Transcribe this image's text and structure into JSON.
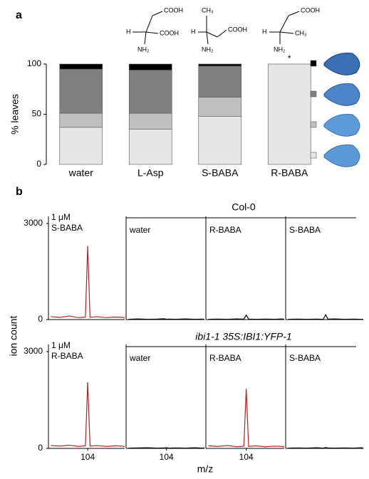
{
  "panel_labels": [
    "a",
    "b"
  ],
  "structures": [
    {
      "top": "COOH",
      "left": "H",
      "right": "COOH",
      "bottom": "NH₂"
    },
    {
      "top": "CH₃",
      "left": "H",
      "right": "COOH",
      "bottom": "NH₂"
    },
    {
      "top": "COOH",
      "left": "H",
      "right": "CH₃",
      "bottom": "NH₂"
    }
  ],
  "panel_b": {
    "ylabel": "ion count",
    "xlabel": "m/z",
    "groups": [
      "Col-0",
      "ibi1-1 35S:IBI1:YFP-1"
    ]
  },
  "chart_data": [
    {
      "type": "bar",
      "stacked": true,
      "ylabel": "% leaves",
      "annotation": "*",
      "categories": [
        "water",
        "L-Asp",
        "S-BABA",
        "R-BABA"
      ],
      "series": [
        {
          "color": "#e6e6e6",
          "values": [
            37,
            35,
            48,
            100
          ]
        },
        {
          "color": "#c0c0c0",
          "values": [
            14,
            16,
            19,
            0
          ]
        },
        {
          "color": "#808080",
          "values": [
            44,
            43,
            31,
            0
          ]
        },
        {
          "color": "#000000",
          "values": [
            5,
            6,
            2,
            0
          ]
        }
      ],
      "ylim": [
        0,
        100
      ],
      "yticks": [
        0,
        50,
        100
      ]
    },
    {
      "type": "line",
      "labels": [
        "1 μM",
        "S-BABA"
      ],
      "x": [
        102.4,
        102.8,
        103.2,
        103.6,
        103.9,
        104.0,
        104.1,
        104.4,
        104.8,
        105.2,
        105.5,
        105.6
      ],
      "series": [
        {
          "color": "#b22222",
          "values": [
            90,
            70,
            110,
            60,
            80,
            2300,
            70,
            90,
            60,
            80,
            70,
            50
          ]
        }
      ],
      "xlim": [
        102.3,
        105.6
      ],
      "ylim": [
        0,
        3000
      ],
      "yticks": [
        0,
        3000
      ]
    },
    {
      "type": "line",
      "labels": [
        "water"
      ],
      "x": [
        102.4,
        102.8,
        103.2,
        103.6,
        103.9,
        104.0,
        104.1,
        104.4,
        104.8,
        105.2,
        105.5,
        105.6
      ],
      "series": [
        {
          "color": "#000000",
          "values": [
            10,
            20,
            10,
            15,
            25,
            10,
            15,
            10,
            20,
            10,
            15,
            10
          ]
        }
      ],
      "xlim": [
        102.3,
        105.6
      ],
      "ylim": [
        0,
        3000
      ]
    },
    {
      "type": "line",
      "labels": [
        "R-BABA"
      ],
      "x": [
        102.4,
        102.8,
        103.2,
        103.6,
        103.9,
        104.0,
        104.1,
        104.4,
        104.8,
        105.2,
        105.5,
        105.6
      ],
      "series": [
        {
          "color": "#000000",
          "values": [
            10,
            15,
            10,
            20,
            15,
            140,
            15,
            10,
            15,
            10,
            20,
            10
          ]
        }
      ],
      "xlim": [
        102.3,
        105.6
      ],
      "ylim": [
        0,
        3000
      ]
    },
    {
      "type": "line",
      "labels": [
        "S-BABA"
      ],
      "x": [
        102.4,
        102.8,
        103.2,
        103.6,
        103.9,
        104.0,
        104.1,
        104.4,
        104.8,
        105.2,
        105.5,
        105.6
      ],
      "series": [
        {
          "color": "#000000",
          "values": [
            10,
            15,
            10,
            15,
            10,
            150,
            15,
            20,
            10,
            15,
            10,
            10
          ]
        }
      ],
      "xlim": [
        102.3,
        105.6
      ],
      "ylim": [
        0,
        3000
      ]
    },
    {
      "type": "line",
      "labels": [
        "1 μM",
        "R-BABA"
      ],
      "x": [
        102.4,
        102.8,
        103.2,
        103.6,
        103.9,
        104.0,
        104.1,
        104.4,
        104.8,
        105.2,
        105.5,
        105.6
      ],
      "series": [
        {
          "color": "#b22222",
          "values": [
            90,
            70,
            100,
            60,
            80,
            2050,
            70,
            90,
            60,
            80,
            70,
            50
          ]
        }
      ],
      "xlim": [
        102.3,
        105.6
      ],
      "ylim": [
        0,
        3000
      ],
      "yticks": [
        0,
        3000
      ],
      "xticks": [
        104
      ]
    },
    {
      "type": "line",
      "labels": [
        "water"
      ],
      "x": [
        102.4,
        102.8,
        103.2,
        103.6,
        103.9,
        104.0,
        104.1,
        104.4,
        104.8,
        105.2,
        105.5,
        105.6
      ],
      "series": [
        {
          "color": "#000000",
          "values": [
            10,
            15,
            20,
            10,
            15,
            20,
            10,
            15,
            10,
            20,
            10,
            15
          ]
        }
      ],
      "xlim": [
        102.3,
        105.6
      ],
      "ylim": [
        0,
        3000
      ],
      "xticks": [
        104
      ]
    },
    {
      "type": "line",
      "labels": [
        "R-BABA"
      ],
      "x": [
        102.4,
        102.8,
        103.2,
        103.6,
        103.9,
        104.0,
        104.1,
        104.4,
        104.8,
        105.2,
        105.5,
        105.6
      ],
      "series": [
        {
          "color": "#b22222",
          "values": [
            80,
            60,
            90,
            50,
            70,
            1850,
            60,
            80,
            50,
            70,
            60,
            40
          ]
        }
      ],
      "xlim": [
        102.3,
        105.6
      ],
      "ylim": [
        0,
        3000
      ],
      "xticks": [
        104
      ]
    },
    {
      "type": "line",
      "labels": [
        "S-BABA"
      ],
      "x": [
        102.4,
        102.8,
        103.2,
        103.6,
        103.9,
        104.0,
        104.1,
        104.4,
        104.8,
        105.2,
        105.5,
        105.6
      ],
      "series": [
        {
          "color": "#000000",
          "values": [
            10,
            15,
            10,
            20,
            10,
            25,
            15,
            10,
            15,
            10,
            20,
            10
          ]
        }
      ],
      "xlim": [
        102.3,
        105.6
      ],
      "ylim": [
        0,
        3000
      ]
    }
  ]
}
